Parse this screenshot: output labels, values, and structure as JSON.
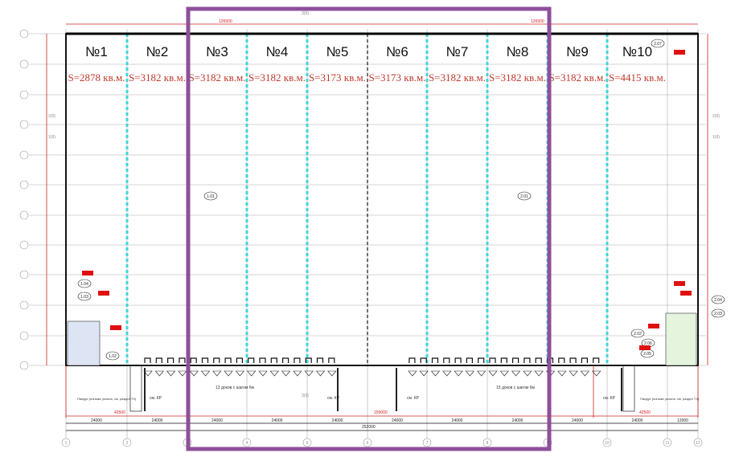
{
  "units": [
    {
      "label": "№1",
      "area": "S=2878 кв.м."
    },
    {
      "label": "№2",
      "area": "S=3182 кв.м."
    },
    {
      "label": "№3",
      "area": "S=3182 кв.м."
    },
    {
      "label": "№4",
      "area": "S=3182 кв.м."
    },
    {
      "label": "№5",
      "area": "S=3173 кв.м."
    },
    {
      "label": "№6",
      "area": "S=3173 кв.м."
    },
    {
      "label": "№7",
      "area": "S=3182 кв.м."
    },
    {
      "label": "№8",
      "area": "S=3182 кв.м."
    },
    {
      "label": "№9",
      "area": "S=3182 кв.м."
    },
    {
      "label": "№10",
      "area": "S=4415 кв.м."
    }
  ],
  "room_tags": {
    "r101": "1.01",
    "r201": "2.01",
    "r104": "1.04",
    "r103": "1.03",
    "r102": "1.02",
    "r207": "2.07",
    "r204": "2.04",
    "r203": "2.03",
    "r202": "2.02",
    "r206": "2.06",
    "r205": "2.05"
  },
  "top_dims": {
    "left": "126500",
    "right": "126500"
  },
  "section_marks": {
    "top": "3(б)",
    "bottom": "3(б)",
    "left_a": "2(б)",
    "left_b": "1(б)",
    "right_a": "2(б)",
    "right_b": "1(б)"
  },
  "dock_notes": {
    "left": "13 доков с шагом 6м",
    "right": "15 доков с шагом 6м"
  },
  "ramp_note": "Пандус (пониже уклона, см. раздел ТХ)",
  "wall_note": "см. КР",
  "bay_dims": [
    "24000",
    "24000",
    "24000",
    "24000",
    "24000",
    "24000",
    "24000",
    "24000",
    "24000",
    "24000",
    "12000"
  ],
  "total_dim": "252000",
  "red_dims": {
    "left": "42500",
    "mid": "159000",
    "right": "42500"
  },
  "column_axes": [
    "1",
    "2",
    "3",
    "4",
    "5",
    "6",
    "7",
    "8",
    "9",
    "10",
    "11",
    "12"
  ],
  "colors": {
    "highlight": "#8e4f9a",
    "partition": "#3fd6dc",
    "area_text": "#c0392b",
    "marker": "#e01010"
  }
}
